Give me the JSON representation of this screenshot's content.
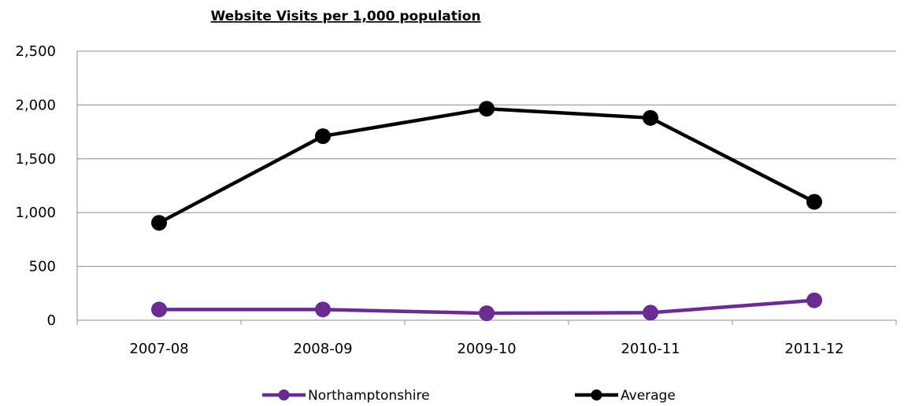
{
  "chart_data": {
    "type": "line",
    "title": "Website Visits per 1,000 population",
    "xlabel": "",
    "ylabel": "",
    "categories": [
      "2007-08",
      "2008-09",
      "2009-10",
      "2010-11",
      "2011-12"
    ],
    "ylim": [
      0,
      2500
    ],
    "yticks": [
      "0",
      "500",
      "1,000",
      "1,500",
      "2,000",
      "2,500"
    ],
    "ytick_values": [
      0,
      500,
      1000,
      1500,
      2000,
      2500
    ],
    "grid": true,
    "legend_position": "bottom",
    "series": [
      {
        "name": "Northamptonshire",
        "color": "#6B2C91",
        "values": [
          100,
          100,
          65,
          70,
          185
        ]
      },
      {
        "name": "Average",
        "color": "#000000",
        "values": [
          905,
          1710,
          1965,
          1880,
          1100
        ]
      }
    ]
  }
}
